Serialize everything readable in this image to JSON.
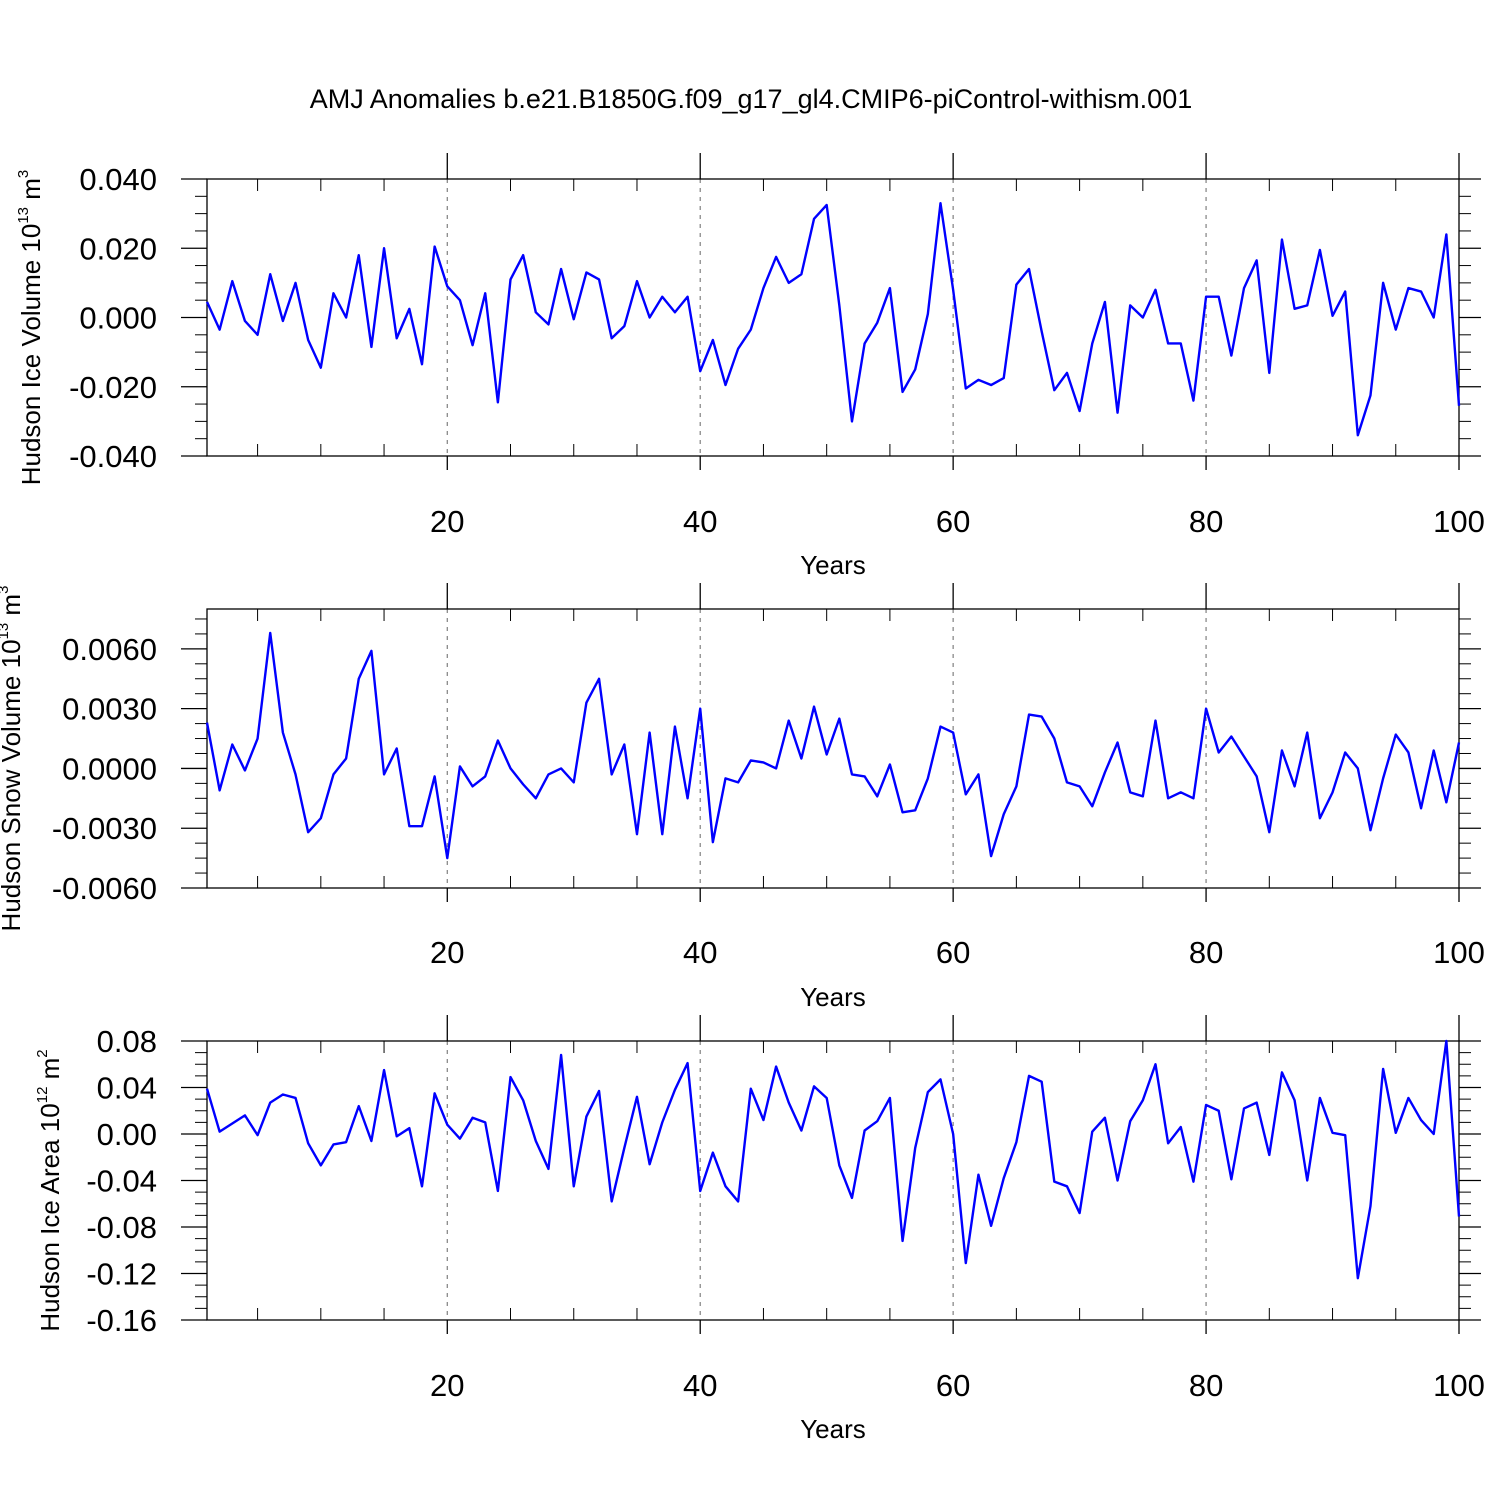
{
  "title": "AMJ Anomalies b.e21.B1850G.f09_g17_gl4.CMIP6-piControl-withism.001",
  "colors": {
    "series": "#0000ff",
    "axis": "#000000",
    "grid": "#808080"
  },
  "chart_data": [
    {
      "type": "line",
      "xlabel": "Years",
      "ylabel": {
        "prefix": "Hudson Ice Volume 10",
        "exponent": "13",
        "unit": " m",
        "unit_exponent": "3"
      },
      "xlim": [
        1,
        100
      ],
      "ylim": [
        -0.04,
        0.04
      ],
      "xticks": [
        "20",
        "40",
        "60",
        "80",
        "100"
      ],
      "yticks": [
        "0.040",
        "0.020",
        "0.000",
        "-0.020",
        "-0.040"
      ],
      "ytick_values": [
        0.04,
        0.02,
        0.0,
        -0.02,
        -0.04
      ],
      "xtick_values": [
        20,
        40,
        60,
        80,
        100
      ],
      "grid_x": [
        20,
        40,
        60,
        80
      ],
      "series": [
        {
          "values": [
            0.0045,
            -0.0035,
            0.0105,
            -0.001,
            -0.005,
            0.0125,
            -0.001,
            0.01,
            -0.0065,
            -0.0145,
            0.007,
            0.0,
            0.018,
            -0.0085,
            0.02,
            -0.006,
            0.0025,
            -0.0135,
            0.0205,
            0.009,
            0.005,
            -0.008,
            0.007,
            -0.0245,
            0.011,
            0.018,
            0.0015,
            -0.002,
            0.014,
            -0.0005,
            0.013,
            0.011,
            -0.006,
            -0.0025,
            0.0105,
            0.0,
            0.006,
            0.0015,
            0.006,
            -0.0155,
            -0.0065,
            -0.0195,
            -0.009,
            -0.0035,
            0.0085,
            0.0175,
            0.01,
            0.0125,
            0.0285,
            0.0325,
            0.0035,
            -0.03,
            -0.0075,
            -0.0015,
            0.0085,
            -0.0215,
            -0.015,
            0.001,
            0.033,
            0.008,
            -0.0205,
            -0.018,
            -0.0195,
            -0.0175,
            0.0095,
            0.014,
            -0.004,
            -0.021,
            -0.016,
            -0.027,
            -0.0075,
            0.0045,
            -0.0275,
            0.0035,
            0.0,
            0.008,
            -0.0075,
            -0.0075,
            -0.024,
            0.006,
            0.006,
            -0.011,
            0.0085,
            0.0165,
            -0.016,
            0.0225,
            0.0025,
            0.0035,
            0.0195,
            0.0005,
            0.0075,
            -0.034,
            -0.0225,
            0.01,
            -0.0035,
            0.0085,
            0.0075,
            0.0,
            0.024,
            -0.0255
          ]
        }
      ]
    },
    {
      "type": "line",
      "xlabel": "Years",
      "ylabel": {
        "prefix": "Hudson Snow Volume 10",
        "exponent": "13",
        "unit": " m",
        "unit_exponent": "3"
      },
      "xlim": [
        1,
        100
      ],
      "ylim": [
        -0.006,
        0.008
      ],
      "xticks": [
        "20",
        "40",
        "60",
        "80",
        "100"
      ],
      "yticks": [
        "0.0060",
        "0.0030",
        "0.0000",
        "-0.0030",
        "-0.0060"
      ],
      "ytick_values": [
        0.006,
        0.003,
        0.0,
        -0.003,
        -0.006
      ],
      "xtick_values": [
        20,
        40,
        60,
        80,
        100
      ],
      "grid_x": [
        20,
        40,
        60,
        80
      ],
      "series": [
        {
          "values": [
            0.0023,
            -0.0011,
            0.0012,
            -0.0001,
            0.0015,
            0.0068,
            0.0018,
            -0.0003,
            -0.0032,
            -0.0025,
            -0.0003,
            0.0005,
            0.0045,
            0.0059,
            -0.0003,
            0.001,
            -0.0029,
            -0.0029,
            -0.0004,
            -0.0045,
            0.0001,
            -0.0009,
            -0.0004,
            0.0014,
            0.0,
            -0.0008,
            -0.0015,
            -0.0003,
            0.0,
            -0.0007,
            0.0033,
            0.0045,
            -0.0003,
            0.0012,
            -0.0033,
            0.0018,
            -0.0033,
            0.0021,
            -0.0015,
            0.003,
            -0.0037,
            -0.0005,
            -0.0007,
            0.0004,
            0.0003,
            0.0,
            0.0024,
            0.0005,
            0.0031,
            0.0007,
            0.0025,
            -0.0003,
            -0.0004,
            -0.0014,
            0.0002,
            -0.0022,
            -0.0021,
            -0.0005,
            0.0021,
            0.0018,
            -0.0013,
            -0.0003,
            -0.0044,
            -0.0023,
            -0.0009,
            0.0027,
            0.0026,
            0.0015,
            -0.0007,
            -0.0009,
            -0.0019,
            -0.0002,
            0.0013,
            -0.0012,
            -0.0014,
            0.0024,
            -0.0015,
            -0.0012,
            -0.0015,
            0.003,
            0.0008,
            0.0016,
            0.0006,
            -0.0004,
            -0.0032,
            0.0009,
            -0.0009,
            0.0018,
            -0.0025,
            -0.0012,
            0.0008,
            0.0,
            -0.0031,
            -0.0005,
            0.0017,
            0.0008,
            -0.002,
            0.0009,
            -0.0017,
            0.0013
          ]
        }
      ]
    },
    {
      "type": "line",
      "xlabel": "Years",
      "ylabel": {
        "prefix": "Hudson Ice Area 10",
        "exponent": "12",
        "unit": " m",
        "unit_exponent": "2"
      },
      "xlim": [
        1,
        100
      ],
      "ylim": [
        -0.16,
        0.08
      ],
      "xticks": [
        "20",
        "40",
        "60",
        "80",
        "100"
      ],
      "yticks": [
        "0.08",
        "0.04",
        "0.00",
        "-0.04",
        "-0.08",
        "-0.12",
        "-0.16"
      ],
      "ytick_values": [
        0.08,
        0.04,
        0.0,
        -0.04,
        -0.08,
        -0.12,
        -0.16
      ],
      "xtick_values": [
        20,
        40,
        60,
        80,
        100
      ],
      "grid_x": [
        20,
        40,
        60,
        80
      ],
      "series": [
        {
          "values": [
            0.039,
            0.002,
            0.009,
            0.016,
            -0.001,
            0.027,
            0.034,
            0.031,
            -0.008,
            -0.027,
            -0.009,
            -0.007,
            0.024,
            -0.006,
            0.055,
            -0.002,
            0.005,
            -0.045,
            0.035,
            0.008,
            -0.004,
            0.014,
            0.01,
            -0.049,
            0.049,
            0.029,
            -0.006,
            -0.03,
            0.068,
            -0.045,
            0.015,
            0.037,
            -0.058,
            -0.012,
            0.032,
            -0.026,
            0.01,
            0.038,
            0.061,
            -0.049,
            -0.016,
            -0.045,
            -0.058,
            0.039,
            0.012,
            0.058,
            0.027,
            0.003,
            0.041,
            0.031,
            -0.027,
            -0.055,
            0.003,
            0.011,
            0.031,
            -0.092,
            -0.012,
            0.036,
            0.047,
            0.0,
            -0.111,
            -0.035,
            -0.079,
            -0.038,
            -0.007,
            0.05,
            0.045,
            -0.041,
            -0.045,
            -0.068,
            0.002,
            0.014,
            -0.04,
            0.011,
            0.029,
            0.06,
            -0.008,
            0.006,
            -0.041,
            0.025,
            0.02,
            -0.039,
            0.022,
            0.027,
            -0.018,
            0.053,
            0.029,
            -0.04,
            0.031,
            0.001,
            -0.001,
            -0.124,
            -0.062,
            0.056,
            0.001,
            0.031,
            0.012,
            0.0,
            0.08,
            -0.071
          ]
        }
      ]
    }
  ]
}
